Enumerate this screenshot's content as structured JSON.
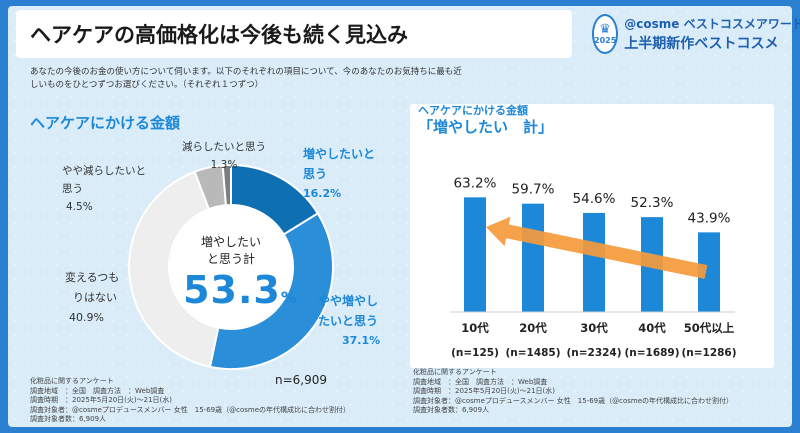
{
  "header": {
    "title": "ヘアケアの高価格化は今後も続く見込み",
    "brand_line1": "@cosme ベストコスメアワード",
    "brand_line2": "上半期新作ベストコスメ",
    "badge_year": "2025"
  },
  "question": "あなたの今後のお金の使い方について伺います。以下のそれぞれの項目について、今のあなたのお気持ちに最も近しいものをひとつずつお選びください。（それぞれ１つずつ）",
  "donut": {
    "section_title": "ヘアケアにかける金額",
    "center_caption_line1": "増やしたい",
    "center_caption_line2": "と思う計",
    "center_value": "53.3",
    "center_unit": "%",
    "n_total": "n=6,909",
    "labels": [
      {
        "line1": "増やしたいと",
        "line2": "思う",
        "pct": "16.2%"
      },
      {
        "line1": "やや増やし",
        "line2": "たいと思う",
        "pct": "37.1%"
      },
      {
        "line1": "変えるつも",
        "line2": "りはない",
        "pct": "40.9%"
      },
      {
        "line1": "やや減らしたいと",
        "line2": "思う",
        "pct": "4.5%"
      },
      {
        "line1": "減らしたいと思う",
        "line2": "",
        "pct": "1.3%"
      }
    ],
    "colors": [
      "#0e6fb3",
      "#2a8fd8",
      "#eeeeee",
      "#b9b9b9",
      "#7e7e7e"
    ]
  },
  "bars": {
    "subtitle": "ヘアケアにかける金額",
    "title": "「増やしたい　計」",
    "bar_color": "#1e88d8",
    "arrow_color": "#f59a3c"
  },
  "chart_data": [
    {
      "type": "pie",
      "title": "ヘアケアにかける金額",
      "categories": [
        "増やしたいと思う",
        "やや増やしたいと思う",
        "変えるつもりはない",
        "やや減らしたいと思う",
        "減らしたいと思う"
      ],
      "values": [
        16.2,
        37.1,
        40.9,
        4.5,
        1.3
      ],
      "annotations": [
        "増やしたいと思う計 53.3%",
        "n=6,909"
      ]
    },
    {
      "type": "bar",
      "title": "「増やしたい　計」",
      "subtitle": "ヘアケアにかける金額",
      "categories": [
        "10代",
        "20代",
        "30代",
        "40代",
        "50代以上"
      ],
      "values": [
        63.2,
        59.7,
        54.6,
        52.3,
        43.9
      ],
      "value_labels": [
        "63.2%",
        "59.7%",
        "54.6%",
        "52.3%",
        "43.9%"
      ],
      "sample_sizes": [
        "(n=125)",
        "(n=1485)",
        "(n=2324)",
        "(n=1689)",
        "(n=1286)"
      ],
      "ylim": [
        0,
        100
      ],
      "grid": false
    }
  ],
  "footnotes": {
    "left": [
      "化粧品に関するアンケート",
      "調査地域　：全国　調査方法　：Web調査",
      "調査時期　：2025年5月20日(火)～21日(水)",
      "調査対象者：@cosmeプロデュースメンバー 女性　15-69歳（@cosmeの年代構成比に合わせ割付）",
      "調査対象者数：6,909人"
    ],
    "right": [
      "化粧品に関するアンケート",
      "調査地域　：全国　調査方法　：Web調査",
      "調査時期　：2025年5月20日(火)～21日(水)",
      "調査対象者：@cosmeプロデュースメンバー 女性　15-69歳（@cosmeの年代構成比に合わせ割付）",
      "調査対象者数：6,909人"
    ]
  }
}
